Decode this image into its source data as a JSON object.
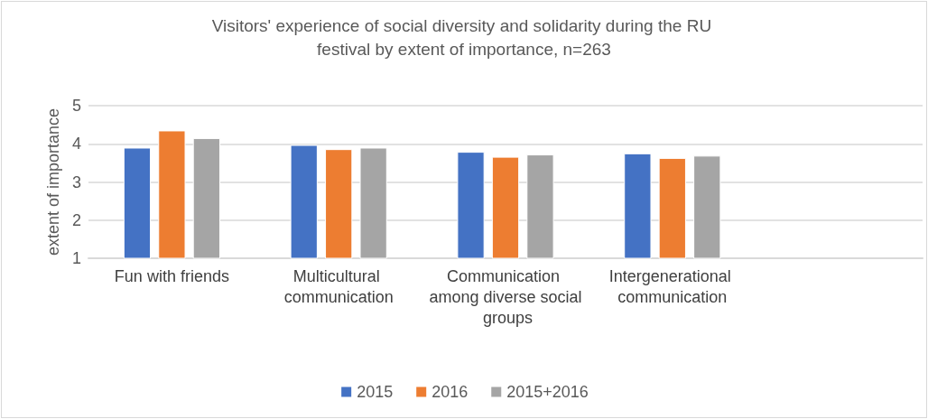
{
  "chart_data": {
    "type": "bar",
    "title": "Visitors' experience of social diversity and solidarity during the RU festival by extent of importance, n=263",
    "ylabel": "extent of importance",
    "categories": [
      "Fun with friends",
      "Multicultural communication",
      "Communication among diverse social groups",
      "Intergenerational communication",
      null
    ],
    "series": [
      {
        "name": "2015",
        "color": "#4472c4",
        "values": [
          3.9,
          3.97,
          3.79,
          3.75,
          null
        ]
      },
      {
        "name": "2016",
        "color": "#ed7d31",
        "values": [
          4.35,
          3.86,
          3.66,
          3.63,
          null
        ]
      },
      {
        "name": "2015+2016",
        "color": "#a5a5a5",
        "values": [
          4.15,
          3.9,
          3.72,
          3.69,
          null
        ]
      }
    ],
    "ylim": [
      1,
      5
    ],
    "yticks": [
      1,
      2,
      3,
      4,
      5
    ],
    "grid": "y",
    "legend": "bottom"
  }
}
